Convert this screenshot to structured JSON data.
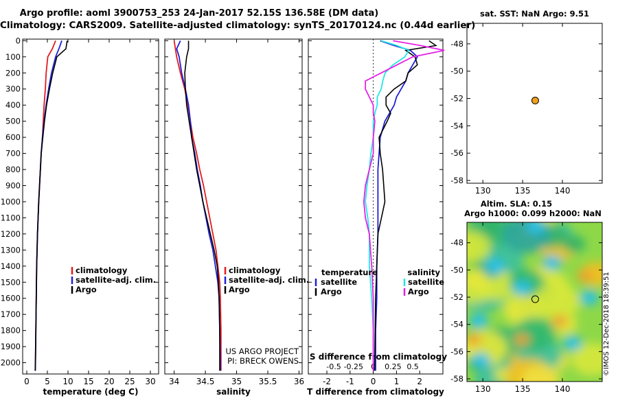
{
  "titles": {
    "line1": "Argo profile: aoml 3900753_253 24-Jan-2017 52.15S 136.58E (DM data)",
    "line2": "Climatology: CARS2009. Satellite-adjusted climatology: synTS_20170124.nc (0.44d earlier)"
  },
  "colors": {
    "climatology": "#e41a1c",
    "satellite": "#1f1fd6",
    "argo": "#000000",
    "sal_sat": "#22e6e6",
    "sal_argo": "#e620e6",
    "marker": "#f0a020"
  },
  "depth_ticks": [
    "0",
    "100",
    "200",
    "300",
    "400",
    "500",
    "600",
    "700",
    "800",
    "900",
    "1000",
    "1100",
    "1200",
    "1300",
    "1400",
    "1500",
    "1600",
    "1700",
    "1800",
    "1900",
    "2000"
  ],
  "chart_data": [
    {
      "type": "line",
      "id": "temperature",
      "xlabel": "temperature (deg C)",
      "ylabel": "depth",
      "xlim": [
        -1,
        32
      ],
      "ylim": [
        2070,
        -10
      ],
      "xticks": [
        0,
        5,
        10,
        15,
        20,
        25,
        30
      ],
      "legend": [
        "climatology",
        "satellite-adj. clim.",
        "Argo"
      ],
      "depth": [
        0,
        50,
        100,
        150,
        200,
        300,
        400,
        500,
        600,
        700,
        800,
        900,
        1000,
        1200,
        1400,
        1600,
        1800,
        2000,
        2050
      ],
      "series": [
        {
          "name": "climatology",
          "values": [
            7.0,
            6.2,
            5.1,
            4.9,
            4.7,
            4.5,
            4.2,
            4.0,
            3.8,
            3.5,
            3.3,
            3.1,
            2.9,
            2.6,
            2.4,
            2.3,
            2.2,
            2.1,
            2.05
          ]
        },
        {
          "name": "satellite-adj. clim.",
          "values": [
            8.5,
            7.8,
            7.0,
            6.5,
            6.0,
            5.3,
            4.7,
            4.2,
            3.8,
            3.5,
            3.3,
            3.1,
            2.9,
            2.6,
            2.4,
            2.3,
            2.2,
            2.1,
            2.05
          ]
        },
        {
          "name": "Argo",
          "values": [
            9.8,
            9.5,
            7.3,
            6.8,
            6.3,
            5.5,
            4.8,
            4.3,
            3.9,
            3.5,
            3.3,
            3.1,
            2.9,
            2.6,
            2.4,
            2.3,
            2.2,
            2.1,
            2.05
          ]
        }
      ]
    },
    {
      "type": "line",
      "id": "salinity",
      "xlabel": "salinity",
      "xlim": [
        33.85,
        36.05
      ],
      "ylim": [
        2070,
        -10
      ],
      "xticks": [
        34,
        34.5,
        35,
        35.5,
        36
      ],
      "xticklabels": [
        "34",
        "34.5",
        "35",
        "35.5",
        "36"
      ],
      "legend": [
        "climatology",
        "satellite-adj. clim.",
        "Argo"
      ],
      "annotation": [
        "US ARGO PROJECT",
        "PI: BRECK OWENS"
      ],
      "depth": [
        0,
        50,
        100,
        200,
        300,
        400,
        500,
        600,
        700,
        800,
        900,
        1000,
        1100,
        1200,
        1300,
        1400,
        1500,
        1600,
        1800,
        2000,
        2050
      ],
      "series": [
        {
          "name": "climatology",
          "values": [
            34.0,
            34.02,
            34.04,
            34.1,
            34.17,
            34.22,
            34.26,
            34.3,
            34.36,
            34.41,
            34.47,
            34.52,
            34.57,
            34.62,
            34.67,
            34.7,
            34.73,
            34.74,
            34.75,
            34.75,
            34.75
          ]
        },
        {
          "name": "satellite-adj. clim.",
          "values": [
            34.1,
            34.04,
            34.08,
            34.12,
            34.18,
            34.23,
            34.26,
            34.28,
            34.33,
            34.37,
            34.42,
            34.46,
            34.51,
            34.56,
            34.62,
            34.66,
            34.7,
            34.72,
            34.73,
            34.74,
            34.74
          ]
        },
        {
          "name": "Argo",
          "values": [
            34.23,
            34.23,
            34.2,
            34.17,
            34.18,
            34.2,
            34.24,
            34.28,
            34.32,
            34.36,
            34.41,
            34.46,
            34.52,
            34.58,
            34.64,
            34.69,
            34.71,
            34.72,
            34.73,
            34.73,
            34.73
          ]
        }
      ]
    },
    {
      "type": "line",
      "id": "difference",
      "xlabel": "T difference from climatology",
      "xlabel2": "S difference from climatology",
      "xlim": [
        -2.8,
        3.0
      ],
      "ylim": [
        2070,
        -10
      ],
      "xticks": [
        -2,
        -1,
        0,
        1,
        2
      ],
      "s_ticks": [
        "-0.5",
        "-0.25",
        "0",
        "0.25",
        "0.5"
      ],
      "legend_left": {
        "title": "temperature",
        "items": [
          "satellite",
          "Argo"
        ]
      },
      "legend_right": {
        "title": "salinity",
        "items": [
          "satellite",
          "Argo"
        ]
      },
      "depth": [
        0,
        30,
        60,
        100,
        150,
        200,
        250,
        300,
        350,
        400,
        450,
        500,
        600,
        700,
        800,
        900,
        1000,
        1100,
        1200,
        1400,
        1600,
        1800,
        2000,
        2050
      ],
      "series": [
        {
          "name": "T satellite",
          "values": [
            0.3,
            0.9,
            1.6,
            1.9,
            1.7,
            1.5,
            1.4,
            1.2,
            1.0,
            0.9,
            0.7,
            0.5,
            0.3,
            0.25,
            0.2,
            0.2,
            0.2,
            0.2,
            0.2,
            0.15,
            0.15,
            0.1,
            0.1,
            0.1
          ]
        },
        {
          "name": "T Argo",
          "values": [
            2.4,
            2.7,
            1.4,
            1.8,
            1.9,
            1.5,
            1.4,
            0.9,
            0.55,
            0.55,
            0.75,
            0.6,
            0.25,
            0.3,
            0.4,
            0.45,
            0.5,
            0.35,
            0.2,
            0.15,
            0.1,
            0.08,
            0.06,
            0.05
          ]
        },
        {
          "name": "S satellite",
          "values": [
            0.1,
            0.3,
            0.45,
            0.4,
            0.25,
            0.15,
            0.12,
            0.1,
            0.05,
            0.05,
            0.02,
            0.0,
            0.0,
            -0.03,
            -0.05,
            -0.08,
            -0.1,
            -0.07,
            -0.05,
            -0.05,
            -0.02,
            0.0,
            0.0,
            0.0
          ]
        },
        {
          "name": "S Argo",
          "values": [
            0.25,
            0.6,
            0.9,
            0.5,
            0.3,
            0.1,
            -0.1,
            -0.1,
            -0.05,
            0.0,
            0.0,
            0.02,
            0.0,
            0.0,
            -0.05,
            -0.1,
            -0.12,
            -0.1,
            -0.05,
            -0.02,
            0.0,
            0.0,
            0.0,
            0.0
          ]
        }
      ]
    },
    {
      "type": "scatter",
      "id": "sst_map",
      "title": "sat. SST: NaN Argo: 9.51",
      "xlim": [
        128,
        145
      ],
      "ylim": [
        -58.2,
        -46.5
      ],
      "xticks": [
        130,
        135,
        140
      ],
      "yticks": [
        -48,
        -50,
        -52,
        -54,
        -56,
        -58
      ],
      "points": [
        {
          "lon": 136.58,
          "lat": -52.15
        }
      ]
    },
    {
      "type": "heatmap",
      "id": "sla_map",
      "title1": "Altim. SLA: 0.15",
      "title2": "Argo h1000: 0.099 h2000: NaN",
      "xlim": [
        128,
        145
      ],
      "ylim": [
        -58.2,
        -46.5
      ],
      "xticks": [
        130,
        135,
        140
      ],
      "yticks": [
        -48,
        -50,
        -52,
        -54,
        -56,
        -58
      ],
      "points": [
        {
          "lon": 136.58,
          "lat": -52.15
        }
      ]
    }
  ],
  "watermark": "©IMOS 12-Dec-2018 18:39:51"
}
